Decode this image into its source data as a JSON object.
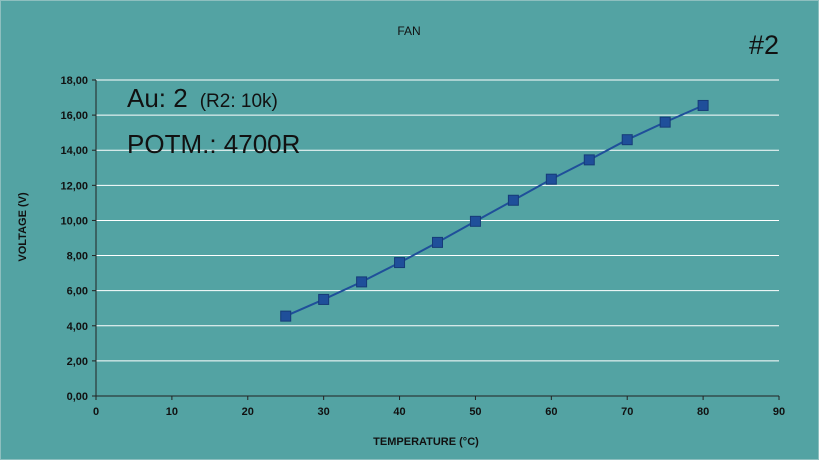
{
  "chart_data": {
    "type": "line",
    "title": "FAN",
    "xlabel": "TEMPERATURE (°C)",
    "ylabel": "VOLTAGE (V)",
    "xlim": [
      0,
      90
    ],
    "ylim": [
      0,
      18
    ],
    "x_ticks": [
      "0",
      "10",
      "20",
      "30",
      "40",
      "50",
      "60",
      "70",
      "80",
      "90"
    ],
    "y_ticks": [
      "0,00",
      "2,00",
      "4,00",
      "6,00",
      "8,00",
      "10,00",
      "12,00",
      "14,00",
      "16,00",
      "18,00"
    ],
    "grid": "horizontal",
    "legend": "none",
    "series": [
      {
        "x": [
          25,
          30,
          35,
          40,
          45,
          50,
          55,
          60,
          65,
          70,
          75,
          80
        ],
        "values": [
          4.55,
          5.5,
          6.5,
          7.6,
          8.75,
          9.95,
          11.15,
          12.35,
          13.45,
          14.6,
          15.6,
          16.55
        ]
      }
    ],
    "annotations": {
      "corner": "#2",
      "au_main": "Au: 2",
      "au_note": "(R2: 10k)",
      "potm": "POTM.: 4700R"
    }
  },
  "colors": {
    "background": "#53a3a3",
    "series": "#1f4f9a",
    "grid": "#ffffff",
    "text": "#111111"
  }
}
